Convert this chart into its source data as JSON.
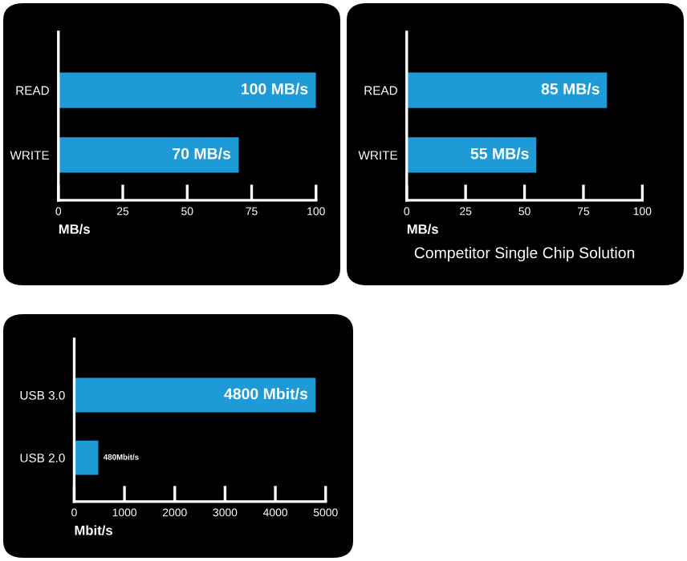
{
  "chart_data": [
    {
      "type": "bar",
      "orientation": "horizontal",
      "categories": [
        "READ",
        "WRITE"
      ],
      "values": [
        100,
        70
      ],
      "value_labels": [
        "100 MB/s",
        "70 MB/s"
      ],
      "color": "#1e9bd7",
      "xlim": [
        0,
        100
      ],
      "xticks": [
        0,
        25,
        50,
        75,
        100
      ],
      "xlabel": "MB/s",
      "grid": false,
      "legend": false
    },
    {
      "type": "bar",
      "orientation": "horizontal",
      "categories": [
        "READ",
        "WRITE"
      ],
      "values": [
        85,
        55
      ],
      "value_labels": [
        "85 MB/s",
        "55 MB/s"
      ],
      "color": "#1e9bd7",
      "xlim": [
        0,
        100
      ],
      "xticks": [
        0,
        25,
        50,
        75,
        100
      ],
      "xlabel": "MB/s",
      "title": "Competitor Single Chip Solution",
      "grid": false,
      "legend": false
    },
    {
      "type": "bar",
      "orientation": "horizontal",
      "categories": [
        "USB 3.0",
        "USB 2.0"
      ],
      "values": [
        4800,
        480
      ],
      "value_labels": [
        "4800 Mbit/s",
        "480Mbit/s"
      ],
      "color": "#1e9bd7",
      "xlim": [
        0,
        5000
      ],
      "xticks": [
        0,
        1000,
        2000,
        3000,
        4000,
        5000
      ],
      "xlabel": "Mbit/s",
      "grid": false,
      "legend": false
    }
  ]
}
